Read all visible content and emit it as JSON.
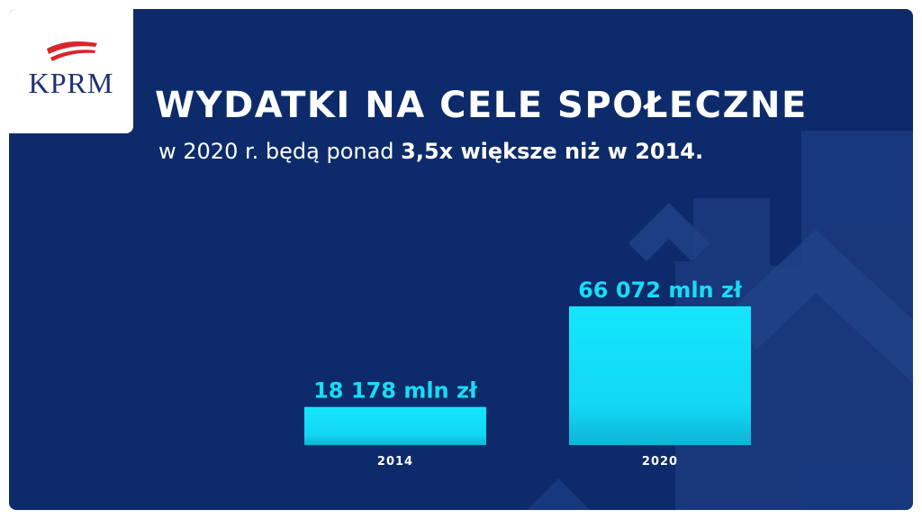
{
  "logo": {
    "text": "KPRM"
  },
  "header": {
    "title": "WYDATKI NA CELE SPOŁECZNE",
    "subtitle_prefix": "w 2020 r. będą ponad ",
    "subtitle_bold": "3,5x większe niż w 2014."
  },
  "colors": {
    "background": "#0d2b6a",
    "bar": "#14e4fb",
    "bar_label": "#18dcf5",
    "text": "#ffffff",
    "logo_red": "#d7262c"
  },
  "chart_data": {
    "type": "bar",
    "categories": [
      "2014",
      "2020"
    ],
    "values": [
      18178,
      66072
    ],
    "data_labels": [
      "18 178 mln zł",
      "66 072 mln zł"
    ],
    "unit": "mln zł",
    "title": "WYDATKI NA CELE SPOŁECZNE",
    "xlabel": "",
    "ylabel": "",
    "ylim": [
      0,
      66072
    ],
    "grid": false
  }
}
